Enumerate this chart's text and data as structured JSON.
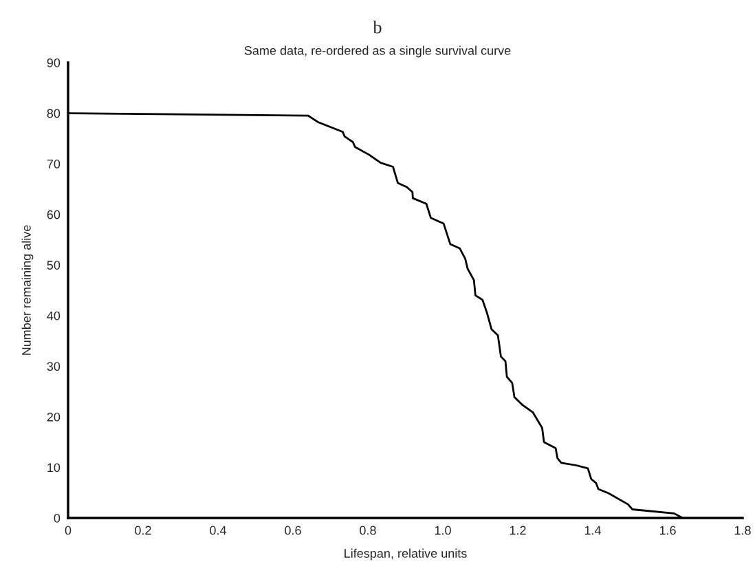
{
  "chart_data": {
    "type": "line",
    "title": "b",
    "subtitle": "Same data, re-ordered as a single survival curve",
    "xlabel": "Lifespan, relative units",
    "ylabel": "Number remaining alive",
    "series": [
      {
        "color": "#000000",
        "x": [
          0,
          0.641,
          0.668,
          0.733,
          0.738,
          0.76,
          0.766,
          0.803,
          0.834,
          0.867,
          0.88,
          0.904,
          0.919,
          0.92,
          0.956,
          0.968,
          1.002,
          1.02,
          1.045,
          1.06,
          1.066,
          1.083,
          1.087,
          1.106,
          1.118,
          1.13,
          1.147,
          1.155,
          1.167,
          1.171,
          1.185,
          1.191,
          1.213,
          1.24,
          1.265,
          1.27,
          1.301,
          1.306,
          1.316,
          1.356,
          1.387,
          1.396,
          1.409,
          1.415,
          1.442,
          1.494,
          1.506,
          1.617,
          1.64
        ],
        "values": [
          80,
          79.5,
          78.2,
          76.3,
          75.4,
          74.3,
          73.3,
          71.8,
          70.2,
          69.4,
          66.2,
          65.4,
          64.4,
          63.2,
          62.1,
          59.3,
          58.2,
          54.1,
          53.3,
          51.2,
          49.3,
          47,
          44,
          43.1,
          40.5,
          37.3,
          36.1,
          31.9,
          31,
          27.9,
          26.7,
          23.9,
          22.3,
          20.9,
          17.8,
          15,
          13.8,
          11.8,
          10.9,
          10.4,
          9.8,
          7.7,
          6.9,
          5.7,
          4.9,
          2.7,
          1.7,
          0.9,
          0
        ]
      }
    ],
    "xlim": [
      0,
      1.8
    ],
    "xticks": [
      0,
      {
        "value": 0.2,
        "label": "0.2"
      },
      {
        "value": 0.4,
        "label": "0.4"
      },
      {
        "value": 0.6,
        "label": "0.6"
      },
      {
        "value": 0.8,
        "label": "0.8"
      },
      {
        "value": 1.0,
        "label": "1.0"
      },
      {
        "value": 1.2,
        "label": "1.2"
      },
      {
        "value": 1.4,
        "label": "1.4"
      },
      {
        "value": 1.6,
        "label": "1.6"
      },
      {
        "value": 1.8,
        "label": "1.8"
      }
    ],
    "ylim": [
      0,
      90
    ],
    "yticks": [
      0,
      10,
      20,
      30,
      40,
      50,
      60,
      70,
      80,
      90
    ],
    "grid": false,
    "marker": "none",
    "line_style": "solid"
  }
}
